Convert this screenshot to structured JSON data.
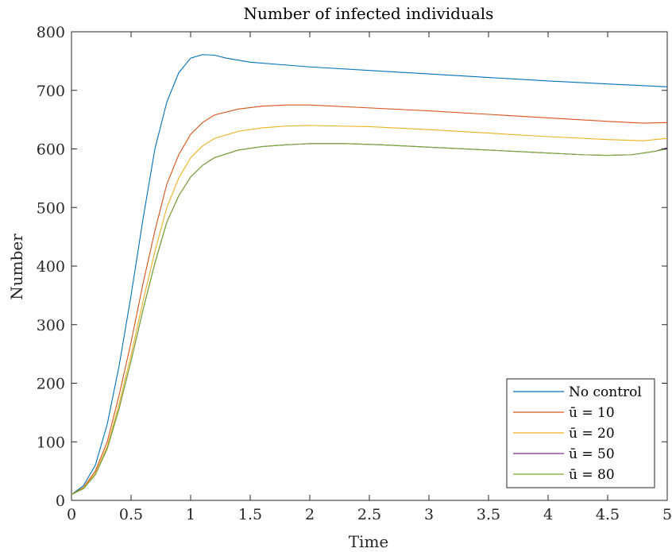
{
  "chart_data": {
    "type": "line",
    "title": "Number of infected individuals",
    "xlabel": "Time",
    "ylabel": "Number",
    "xlim": [
      0,
      5
    ],
    "ylim": [
      0,
      800
    ],
    "xticks": [
      0,
      0.5,
      1,
      1.5,
      2,
      2.5,
      3,
      3.5,
      4,
      4.5,
      5
    ],
    "xtick_labels": [
      "0",
      "0.5",
      "1",
      "1.5",
      "2",
      "2.5",
      "3",
      "3.5",
      "4",
      "4.5",
      "5"
    ],
    "yticks": [
      0,
      100,
      200,
      300,
      400,
      500,
      600,
      700,
      800
    ],
    "ytick_labels": [
      "0",
      "100",
      "200",
      "300",
      "400",
      "500",
      "600",
      "700",
      "800"
    ],
    "grid": false,
    "legend_position": "bottom-right",
    "series": [
      {
        "name": "No control",
        "color": "#0072BD",
        "points": [
          [
            0,
            10
          ],
          [
            0.1,
            25
          ],
          [
            0.2,
            60
          ],
          [
            0.3,
            130
          ],
          [
            0.4,
            230
          ],
          [
            0.5,
            350
          ],
          [
            0.6,
            480
          ],
          [
            0.7,
            600
          ],
          [
            0.8,
            680
          ],
          [
            0.9,
            730
          ],
          [
            1.0,
            755
          ],
          [
            1.1,
            761
          ],
          [
            1.2,
            760
          ],
          [
            1.3,
            755
          ],
          [
            1.5,
            748
          ],
          [
            2.0,
            740
          ],
          [
            2.5,
            734
          ],
          [
            3.0,
            728
          ],
          [
            3.5,
            722
          ],
          [
            4.0,
            716
          ],
          [
            4.5,
            711
          ],
          [
            5.0,
            706
          ]
        ]
      },
      {
        "name": "ū = 10",
        "color": "#D95319",
        "points": [
          [
            0,
            10
          ],
          [
            0.1,
            22
          ],
          [
            0.2,
            50
          ],
          [
            0.3,
            100
          ],
          [
            0.4,
            180
          ],
          [
            0.5,
            270
          ],
          [
            0.6,
            370
          ],
          [
            0.7,
            460
          ],
          [
            0.8,
            540
          ],
          [
            0.9,
            590
          ],
          [
            1.0,
            625
          ],
          [
            1.1,
            645
          ],
          [
            1.2,
            658
          ],
          [
            1.4,
            668
          ],
          [
            1.6,
            673
          ],
          [
            1.8,
            675
          ],
          [
            2.0,
            675
          ],
          [
            2.5,
            670
          ],
          [
            3.0,
            665
          ],
          [
            3.5,
            659
          ],
          [
            4.0,
            653
          ],
          [
            4.5,
            647
          ],
          [
            4.8,
            644
          ],
          [
            5.0,
            645
          ]
        ]
      },
      {
        "name": "ū = 20",
        "color": "#EDB120",
        "points": [
          [
            0,
            10
          ],
          [
            0.1,
            21
          ],
          [
            0.2,
            46
          ],
          [
            0.3,
            92
          ],
          [
            0.4,
            165
          ],
          [
            0.5,
            248
          ],
          [
            0.6,
            340
          ],
          [
            0.7,
            425
          ],
          [
            0.8,
            500
          ],
          [
            0.9,
            550
          ],
          [
            1.0,
            585
          ],
          [
            1.1,
            605
          ],
          [
            1.2,
            618
          ],
          [
            1.4,
            630
          ],
          [
            1.6,
            636
          ],
          [
            1.8,
            639
          ],
          [
            2.0,
            640
          ],
          [
            2.5,
            638
          ],
          [
            3.0,
            633
          ],
          [
            3.5,
            627
          ],
          [
            4.0,
            621
          ],
          [
            4.5,
            616
          ],
          [
            4.8,
            614
          ],
          [
            5.0,
            618
          ]
        ]
      },
      {
        "name": "ū = 50",
        "color": "#7E2F8E",
        "points": [
          [
            0,
            10
          ],
          [
            0.1,
            20
          ],
          [
            0.2,
            44
          ],
          [
            0.3,
            88
          ],
          [
            0.4,
            157
          ],
          [
            0.5,
            238
          ],
          [
            0.6,
            325
          ],
          [
            0.7,
            405
          ],
          [
            0.8,
            475
          ],
          [
            0.9,
            520
          ],
          [
            1.0,
            552
          ],
          [
            1.1,
            572
          ],
          [
            1.2,
            585
          ],
          [
            1.4,
            598
          ],
          [
            1.6,
            604
          ],
          [
            1.8,
            607
          ],
          [
            2.0,
            609
          ],
          [
            2.3,
            609
          ],
          [
            2.6,
            607
          ],
          [
            3.0,
            603
          ],
          [
            3.5,
            598
          ],
          [
            4.0,
            593
          ],
          [
            4.3,
            590
          ],
          [
            4.5,
            589
          ],
          [
            4.7,
            590
          ],
          [
            4.9,
            596
          ],
          [
            5.0,
            602
          ]
        ]
      },
      {
        "name": "ū = 80",
        "color": "#77AC30",
        "points": [
          [
            0,
            10
          ],
          [
            0.1,
            20
          ],
          [
            0.2,
            44
          ],
          [
            0.3,
            88
          ],
          [
            0.4,
            157
          ],
          [
            0.5,
            238
          ],
          [
            0.6,
            325
          ],
          [
            0.7,
            405
          ],
          [
            0.8,
            475
          ],
          [
            0.9,
            520
          ],
          [
            1.0,
            552
          ],
          [
            1.1,
            572
          ],
          [
            1.2,
            585
          ],
          [
            1.4,
            598
          ],
          [
            1.6,
            604
          ],
          [
            1.8,
            607
          ],
          [
            2.0,
            609
          ],
          [
            2.3,
            609
          ],
          [
            2.6,
            607
          ],
          [
            3.0,
            603
          ],
          [
            3.5,
            598
          ],
          [
            4.0,
            593
          ],
          [
            4.3,
            590
          ],
          [
            4.5,
            589
          ],
          [
            4.7,
            590
          ],
          [
            4.9,
            596
          ],
          [
            5.0,
            600
          ]
        ]
      }
    ]
  }
}
